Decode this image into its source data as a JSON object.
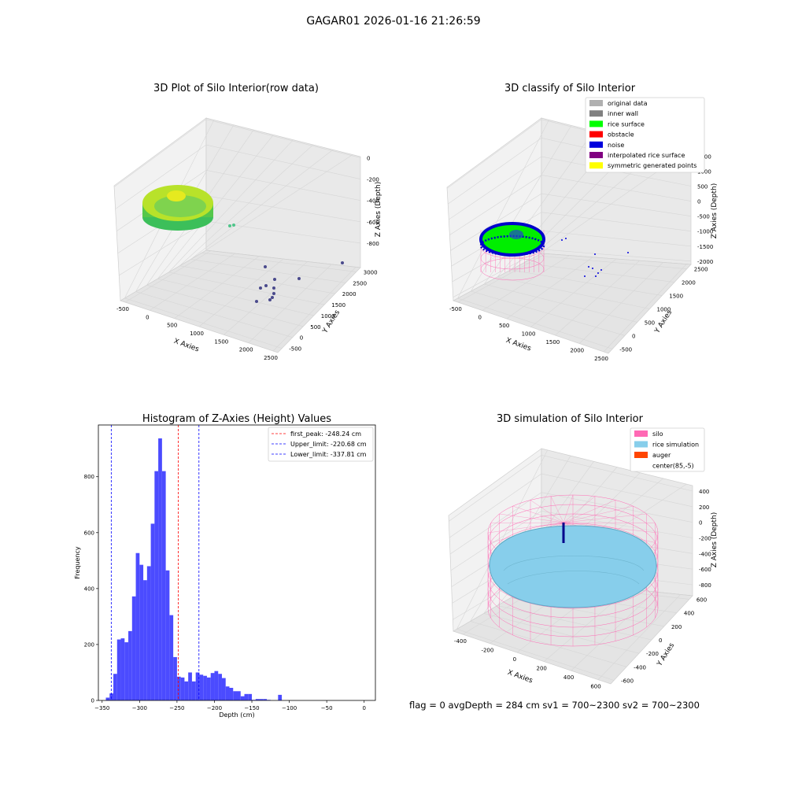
{
  "suptitle": "GAGAR01 2026-01-16 21:26:59",
  "status_text": "flag = 0     avgDepth = 284 cm  sv1 = 700~2300  sv2 = 700~2300",
  "colors": {
    "silo": "#ff69b4",
    "rice_simulation": "#87ceeb",
    "auger": "#ff4500",
    "histogram_bar": "#4b4bff",
    "first_peak_line": "#ff0000",
    "limit_line": "#0000ff",
    "original_data": "#b0b0b0",
    "inner_wall": "#808080",
    "rice_surface": "#00ff00",
    "obstacle": "#ff0000",
    "noise": "#0000dd",
    "interpolated_rice_surface": "#800080",
    "symmetric_generated_points": "#ffff00"
  },
  "chart_data": [
    {
      "type": "scatter",
      "subtype": "3d",
      "title": "3D Plot of Silo Interior(row data)",
      "xlabel": "X Axies",
      "ylabel": "Y Axies",
      "zlabel": "Z Axies (Depth)",
      "x_ticks": [
        "-500",
        "0",
        "500",
        "1000",
        "1500",
        "2000",
        "2500"
      ],
      "y_ticks": [
        "-500",
        "0",
        "500",
        "1000",
        "1500",
        "2000",
        "2500",
        "3000"
      ],
      "z_ticks": [
        "-800",
        "-600",
        "-400",
        "-200",
        "0"
      ],
      "grid": true
    },
    {
      "type": "scatter",
      "subtype": "3d",
      "title": "3D classify of Silo Interior",
      "xlabel": "X Axies",
      "ylabel": "Y Axies",
      "zlabel": "Z Axies (Depth)",
      "x_ticks": [
        "-500",
        "0",
        "500",
        "1000",
        "1500",
        "2000",
        "2500"
      ],
      "y_ticks": [
        "-500",
        "0",
        "500",
        "1000",
        "1500",
        "2000",
        "2500"
      ],
      "z_ticks": [
        "-2000",
        "-1500",
        "-1000",
        "-500",
        "0",
        "500",
        "1000",
        "1500"
      ],
      "legend": [
        "original data",
        "inner wall",
        "rice surface",
        "obstacle",
        "noise",
        "interpolated rice surface",
        "symmetric generated points"
      ],
      "legend_placement": "top-right",
      "grid": true
    },
    {
      "type": "bar",
      "subtype": "histogram",
      "title": "Histogram of Z-Axies (Height) Values",
      "xlabel": "Depth (cm)",
      "ylabel": "Frequency",
      "xlim": [
        -355,
        15
      ],
      "ylim": [
        0,
        985
      ],
      "x_ticks": [
        -350,
        -300,
        -250,
        -200,
        -150,
        -100,
        -50,
        0
      ],
      "y_ticks": [
        0,
        200,
        400,
        600,
        800
      ],
      "bin_start": -345,
      "bin_width": 5,
      "values": [
        10,
        25,
        95,
        218,
        222,
        208,
        248,
        372,
        527,
        485,
        430,
        480,
        632,
        820,
        937,
        820,
        465,
        305,
        155,
        85,
        82,
        68,
        100,
        68,
        100,
        92,
        88,
        82,
        98,
        105,
        95,
        80,
        50,
        45,
        33,
        33,
        15,
        23,
        23,
        2,
        5,
        5,
        5,
        2,
        0,
        0,
        20
      ],
      "vlines": [
        {
          "label": "first_peak: -248.24 cm",
          "x": -248.24,
          "style": "first_peak"
        },
        {
          "label": "Upper_limit: -220.68 cm",
          "x": -220.68,
          "style": "limit"
        },
        {
          "label": "Lower_limit: -337.81 cm",
          "x": -337.81,
          "style": "limit"
        }
      ],
      "legend_placement": "top-right",
      "grid": false
    },
    {
      "type": "scatter",
      "subtype": "3d",
      "title": "3D simulation of Silo Interior",
      "xlabel": "X Axies",
      "ylabel": "Y Axies",
      "zlabel": "Z Axies (Depth)",
      "x_ticks": [
        "-400",
        "-200",
        "0",
        "200",
        "400",
        "600"
      ],
      "y_ticks": [
        "-600",
        "-400",
        "-200",
        "0",
        "200",
        "400",
        "600"
      ],
      "z_ticks": [
        "-800",
        "-600",
        "-400",
        "-200",
        "0",
        "200",
        "400"
      ],
      "legend": [
        "silo",
        "rice simulation",
        "auger",
        "center(85,-5)"
      ],
      "legend_placement": "top-right",
      "grid": true
    }
  ]
}
